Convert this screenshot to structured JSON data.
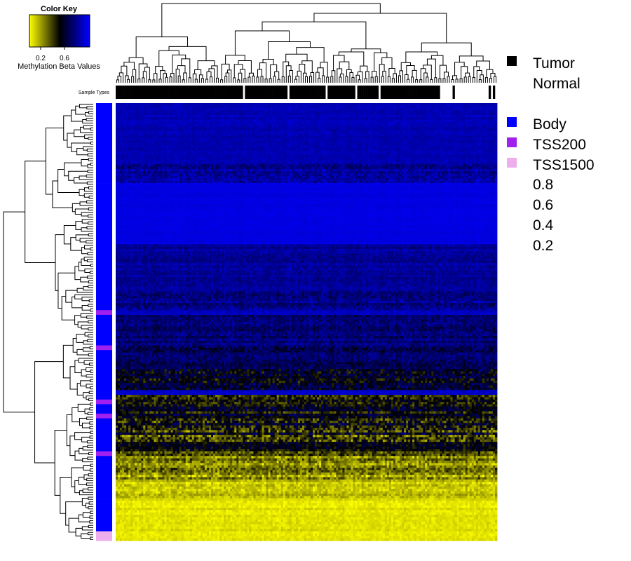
{
  "color_key": {
    "title": "Color Key",
    "ticks": [
      "0.2",
      "0.6"
    ],
    "label": "Methylation Beta Values",
    "gradient": [
      "#ffff00",
      "#000000",
      "#0000ff"
    ]
  },
  "sample_bar_label": "Sample Types",
  "legend": {
    "sample_types": [
      {
        "label": "Tumor",
        "color": "#000000"
      },
      {
        "label": "Normal",
        "color": "#ffffff"
      }
    ],
    "regions": [
      {
        "label": "Body",
        "color": "#0000ff"
      },
      {
        "label": "TSS200",
        "color": "#a020f0"
      },
      {
        "label": "TSS1500",
        "color": "#eeaeee"
      }
    ],
    "values": [
      "0.8",
      "0.6",
      "0.4",
      "0.2"
    ]
  },
  "chart_data": {
    "type": "heatmap",
    "xlabel": "",
    "ylabel": "",
    "value_range": [
      0,
      1
    ],
    "color_scale": [
      "#ffff00",
      "#000000",
      "#0000ff"
    ],
    "n_columns": 180,
    "column_sample_types": [
      "Tumor",
      "Tumor",
      "Tumor",
      "Tumor",
      "Tumor",
      "Tumor",
      "Tumor",
      "Tumor",
      "Tumor",
      "Tumor",
      "Tumor",
      "Tumor",
      "Tumor",
      "Tumor",
      "Tumor",
      "Tumor",
      "Tumor",
      "Tumor",
      "Tumor",
      "Tumor",
      "Tumor",
      "Tumor",
      "Tumor",
      "Tumor",
      "Tumor",
      "Tumor",
      "Tumor",
      "Tumor",
      "Tumor",
      "Tumor",
      "Tumor",
      "Tumor",
      "Tumor",
      "Tumor",
      "Tumor",
      "Tumor",
      "Tumor",
      "Tumor",
      "Tumor",
      "Tumor",
      "Tumor",
      "Tumor",
      "Tumor",
      "Tumor",
      "Tumor",
      "Tumor",
      "Tumor",
      "Tumor",
      "Tumor",
      "Tumor",
      "Tumor",
      "Tumor",
      "Tumor",
      "Tumor",
      "Tumor",
      "Tumor",
      "Tumor",
      "Tumor",
      "Tumor",
      "Tumor",
      "Normal",
      "Tumor",
      "Tumor",
      "Tumor",
      "Tumor",
      "Tumor",
      "Tumor",
      "Tumor",
      "Tumor",
      "Tumor",
      "Tumor",
      "Tumor",
      "Tumor",
      "Tumor",
      "Tumor",
      "Tumor",
      "Tumor",
      "Tumor",
      "Tumor",
      "Tumor",
      "Tumor",
      "Normal",
      "Tumor",
      "Tumor",
      "Tumor",
      "Tumor",
      "Tumor",
      "Tumor",
      "Tumor",
      "Tumor",
      "Tumor",
      "Tumor",
      "Tumor",
      "Tumor",
      "Tumor",
      "Tumor",
      "Tumor",
      "Tumor",
      "Tumor",
      "Normal",
      "Tumor",
      "Tumor",
      "Tumor",
      "Tumor",
      "Tumor",
      "Tumor",
      "Tumor",
      "Tumor",
      "Tumor",
      "Tumor",
      "Tumor",
      "Tumor",
      "Tumor",
      "Normal",
      "Tumor",
      "Tumor",
      "Tumor",
      "Tumor",
      "Tumor",
      "Tumor",
      "Tumor",
      "Tumor",
      "Tumor",
      "Tumor",
      "Normal",
      "Tumor",
      "Tumor",
      "Tumor",
      "Tumor",
      "Tumor",
      "Tumor",
      "Tumor",
      "Tumor",
      "Tumor",
      "Tumor",
      "Tumor",
      "Tumor",
      "Tumor",
      "Tumor",
      "Tumor",
      "Tumor",
      "Tumor",
      "Tumor",
      "Tumor",
      "Tumor",
      "Tumor",
      "Tumor",
      "Tumor",
      "Tumor",
      "Tumor",
      "Tumor",
      "Tumor",
      "Tumor",
      "Normal",
      "Normal",
      "Normal",
      "Normal",
      "Normal",
      "Normal",
      "Tumor",
      "Normal",
      "Normal",
      "Normal",
      "Normal",
      "Normal",
      "Normal",
      "Normal",
      "Normal",
      "Normal",
      "Normal",
      "Normal",
      "Normal",
      "Normal",
      "Normal",
      "Normal",
      "Normal",
      "Tumor",
      "Normal",
      "Tumor",
      "Normal"
    ],
    "row_groups": [
      {
        "region": "Body",
        "rows": 26,
        "beta": 0.85,
        "noise": 0.05
      },
      {
        "region": "Body",
        "rows": 8,
        "beta": 0.78,
        "noise": 0.12
      },
      {
        "region": "Body",
        "rows": 26,
        "beta": 0.94,
        "noise": 0.02
      },
      {
        "region": "Body",
        "rows": 20,
        "beta": 0.8,
        "noise": 0.08
      },
      {
        "region": "Body",
        "rows": 8,
        "beta": 0.75,
        "noise": 0.12
      },
      {
        "region": "TSS200",
        "rows": 2,
        "beta": 0.88,
        "noise": 0.05
      },
      {
        "region": "Body",
        "rows": 13,
        "beta": 0.72,
        "noise": 0.12
      },
      {
        "region": "TSS200",
        "rows": 2,
        "beta": 0.62,
        "noise": 0.15
      },
      {
        "region": "Body",
        "rows": 8,
        "beta": 0.7,
        "noise": 0.12
      },
      {
        "region": "Body",
        "rows": 9,
        "beta": 0.52,
        "noise": 0.2
      },
      {
        "region": "Body",
        "rows": 2,
        "beta": 0.9,
        "noise": 0.04
      },
      {
        "region": "Body",
        "rows": 2,
        "beta": 0.4,
        "noise": 0.18
      },
      {
        "region": "TSS200",
        "rows": 2,
        "beta": 0.45,
        "noise": 0.18
      },
      {
        "region": "Body",
        "rows": 4,
        "beta": 0.5,
        "noise": 0.18
      },
      {
        "region": "TSS200",
        "rows": 2,
        "beta": 0.55,
        "noise": 0.18
      },
      {
        "region": "Body",
        "rows": 10,
        "beta": 0.45,
        "noise": 0.25
      },
      {
        "region": "Body",
        "rows": 4,
        "beta": 0.52,
        "noise": 0.15
      },
      {
        "region": "TSS200",
        "rows": 2,
        "beta": 0.4,
        "noise": 0.18
      },
      {
        "region": "Body",
        "rows": 10,
        "beta": 0.22,
        "noise": 0.18
      },
      {
        "region": "Body",
        "rows": 8,
        "beta": 0.12,
        "noise": 0.1
      },
      {
        "region": "Body",
        "rows": 14,
        "beta": 0.06,
        "noise": 0.05
      },
      {
        "region": "TSS1500",
        "rows": 4,
        "beta": 0.05,
        "noise": 0.04
      }
    ]
  }
}
